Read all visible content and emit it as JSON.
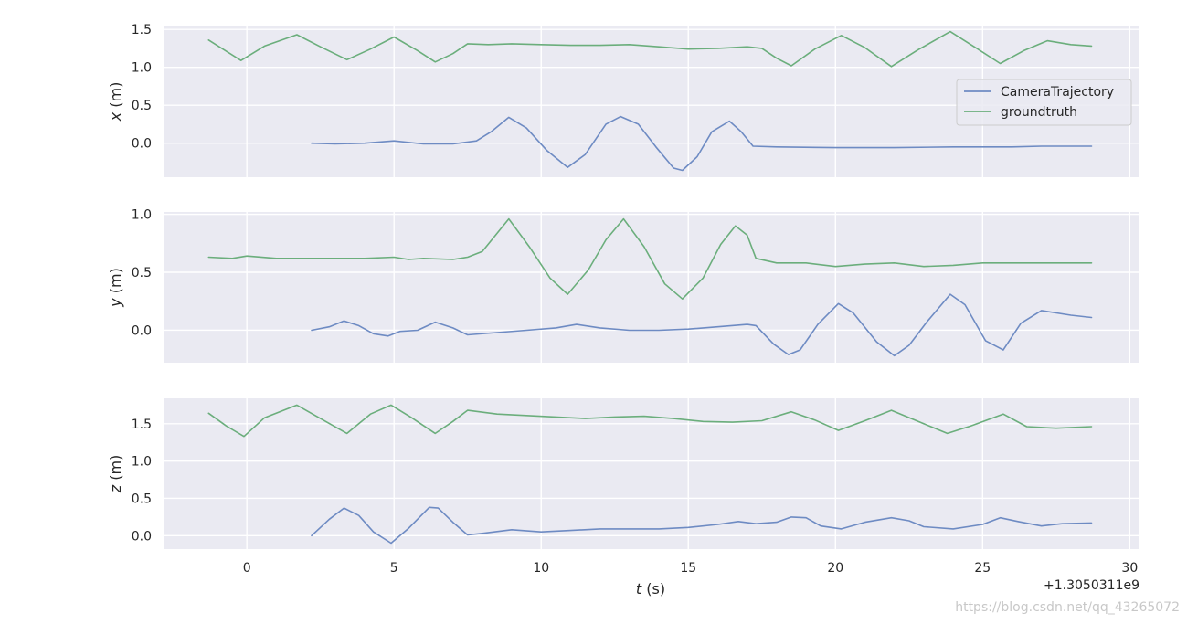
{
  "chart_data": {
    "type": "line",
    "figure": {
      "xlabel_italic": "t",
      "xlabel_unit": " (s)",
      "x_offset_text": "+1.3050311e9",
      "xlim": [
        -2.8,
        30.3
      ],
      "xticks": [
        0,
        5,
        10,
        15,
        20,
        25,
        30
      ],
      "grid": true,
      "legend_loc": "right",
      "watermark": "https://blog.csdn.net/qq_43265072"
    },
    "series_meta": [
      {
        "name": "CameraTrajectory",
        "color": "#6e8bc3"
      },
      {
        "name": "groundtruth",
        "color": "#6bae7c"
      }
    ],
    "subplots": [
      {
        "ylabel_italic": "x",
        "ylabel_unit": " (m)",
        "ylim": [
          -0.45,
          1.55
        ],
        "yticks": [
          0.0,
          0.5,
          1.0,
          1.5
        ],
        "ytick_labels": [
          "0.0",
          "0.5",
          "1.0",
          "1.5"
        ],
        "legend": true,
        "series": [
          {
            "name": "CameraTrajectory",
            "x": [
              2.2,
              3.0,
              4.0,
              5.0,
              6.0,
              7.0,
              7.8,
              8.3,
              8.9,
              9.5,
              10.2,
              10.9,
              11.5,
              12.2,
              12.7,
              13.3,
              13.9,
              14.5,
              14.8,
              15.3,
              15.8,
              16.4,
              16.8,
              17.2,
              18.0,
              20.0,
              22.0,
              24.0,
              26.0,
              27.0,
              28.7
            ],
            "y": [
              0.0,
              -0.01,
              0.0,
              0.03,
              -0.01,
              -0.01,
              0.03,
              0.15,
              0.34,
              0.2,
              -0.1,
              -0.32,
              -0.15,
              0.25,
              0.35,
              0.25,
              -0.05,
              -0.33,
              -0.36,
              -0.18,
              0.15,
              0.29,
              0.15,
              -0.04,
              -0.05,
              -0.06,
              -0.06,
              -0.05,
              -0.05,
              -0.04,
              -0.04
            ]
          },
          {
            "name": "groundtruth",
            "x": [
              -1.3,
              -0.2,
              0.6,
              1.7,
              2.5,
              3.4,
              4.2,
              5.0,
              5.8,
              6.4,
              7.0,
              7.5,
              8.2,
              9.0,
              10.0,
              11.0,
              12.0,
              13.0,
              14.0,
              15.0,
              16.0,
              17.0,
              17.5,
              18.0,
              18.5,
              19.3,
              20.2,
              21.0,
              21.9,
              22.8,
              23.9,
              24.8,
              25.6,
              26.4,
              27.2,
              28.0,
              28.7
            ],
            "y": [
              1.36,
              1.09,
              1.28,
              1.43,
              1.27,
              1.1,
              1.24,
              1.4,
              1.22,
              1.07,
              1.18,
              1.31,
              1.3,
              1.31,
              1.3,
              1.29,
              1.29,
              1.3,
              1.27,
              1.24,
              1.25,
              1.27,
              1.25,
              1.12,
              1.02,
              1.24,
              1.42,
              1.26,
              1.01,
              1.23,
              1.47,
              1.25,
              1.05,
              1.22,
              1.35,
              1.3,
              1.28
            ]
          }
        ]
      },
      {
        "ylabel_italic": "y",
        "ylabel_unit": " (m)",
        "ylim": [
          -0.28,
          1.02
        ],
        "yticks": [
          0.0,
          0.5,
          1.0
        ],
        "ytick_labels": [
          "0.0",
          "0.5",
          "1.0"
        ],
        "legend": false,
        "series": [
          {
            "name": "CameraTrajectory",
            "x": [
              2.2,
              2.8,
              3.3,
              3.8,
              4.3,
              4.8,
              5.2,
              5.8,
              6.4,
              7.0,
              7.5,
              8.5,
              9.5,
              10.5,
              11.2,
              12.0,
              13.0,
              14.0,
              15.0,
              16.0,
              17.0,
              17.3,
              17.9,
              18.4,
              18.8,
              19.4,
              20.1,
              20.6,
              21.4,
              22.0,
              22.5,
              23.1,
              23.9,
              24.4,
              25.1,
              25.7,
              26.3,
              27.0,
              28.0,
              28.7
            ],
            "y": [
              0.0,
              0.03,
              0.08,
              0.04,
              -0.03,
              -0.05,
              -0.01,
              0.0,
              0.07,
              0.02,
              -0.04,
              -0.02,
              0.0,
              0.02,
              0.05,
              0.02,
              0.0,
              0.0,
              0.01,
              0.03,
              0.05,
              0.04,
              -0.12,
              -0.21,
              -0.17,
              0.05,
              0.23,
              0.15,
              -0.1,
              -0.22,
              -0.13,
              0.07,
              0.31,
              0.22,
              -0.09,
              -0.17,
              0.06,
              0.17,
              0.13,
              0.11
            ]
          },
          {
            "name": "groundtruth",
            "x": [
              -1.3,
              -0.5,
              0.0,
              1.0,
              2.0,
              3.0,
              4.0,
              5.0,
              5.5,
              6.0,
              7.0,
              7.5,
              8.0,
              8.9,
              9.6,
              10.3,
              10.9,
              11.6,
              12.2,
              12.8,
              13.5,
              14.2,
              14.8,
              15.5,
              16.1,
              16.6,
              17.0,
              17.3,
              18.0,
              19.0,
              20.0,
              21.0,
              22.0,
              23.0,
              24.0,
              25.0,
              26.0,
              27.0,
              28.7
            ],
            "y": [
              0.63,
              0.62,
              0.64,
              0.62,
              0.62,
              0.62,
              0.62,
              0.63,
              0.61,
              0.62,
              0.61,
              0.63,
              0.68,
              0.96,
              0.72,
              0.45,
              0.31,
              0.52,
              0.78,
              0.96,
              0.72,
              0.4,
              0.27,
              0.45,
              0.74,
              0.9,
              0.82,
              0.62,
              0.58,
              0.58,
              0.55,
              0.57,
              0.58,
              0.55,
              0.56,
              0.58,
              0.58,
              0.58,
              0.58
            ]
          }
        ]
      },
      {
        "ylabel_italic": "z",
        "ylabel_unit": " (m)",
        "ylim": [
          -0.18,
          1.84
        ],
        "yticks": [
          0.0,
          0.5,
          1.0,
          1.5
        ],
        "ytick_labels": [
          "0.0",
          "0.5",
          "1.0",
          "1.5"
        ],
        "legend": false,
        "series": [
          {
            "name": "CameraTrajectory",
            "x": [
              2.2,
              2.8,
              3.3,
              3.8,
              4.3,
              4.9,
              5.5,
              6.2,
              6.5,
              7.0,
              7.5,
              8.0,
              9.0,
              10.0,
              11.0,
              12.0,
              13.0,
              14.0,
              15.0,
              16.0,
              16.7,
              17.3,
              18.0,
              18.5,
              19.0,
              19.5,
              20.2,
              21.0,
              21.9,
              22.5,
              23.0,
              24.0,
              25.0,
              25.6,
              26.2,
              27.0,
              27.7,
              28.7
            ],
            "y": [
              0.0,
              0.22,
              0.37,
              0.27,
              0.05,
              -0.1,
              0.1,
              0.38,
              0.37,
              0.18,
              0.01,
              0.03,
              0.08,
              0.05,
              0.07,
              0.09,
              0.09,
              0.09,
              0.11,
              0.15,
              0.19,
              0.16,
              0.18,
              0.25,
              0.24,
              0.13,
              0.09,
              0.18,
              0.24,
              0.2,
              0.12,
              0.09,
              0.15,
              0.24,
              0.19,
              0.13,
              0.16,
              0.17
            ]
          },
          {
            "name": "groundtruth",
            "x": [
              -1.3,
              -0.7,
              -0.1,
              0.6,
              1.7,
              2.5,
              3.4,
              4.2,
              4.9,
              5.6,
              6.4,
              7.0,
              7.5,
              8.5,
              9.5,
              10.5,
              11.5,
              12.5,
              13.5,
              14.5,
              15.5,
              16.5,
              17.5,
              18.5,
              19.3,
              20.1,
              21.0,
              21.9,
              23.0,
              23.8,
              24.6,
              25.7,
              26.5,
              27.5,
              28.7
            ],
            "y": [
              1.64,
              1.47,
              1.33,
              1.58,
              1.75,
              1.57,
              1.37,
              1.63,
              1.75,
              1.58,
              1.37,
              1.53,
              1.68,
              1.63,
              1.61,
              1.59,
              1.57,
              1.59,
              1.6,
              1.57,
              1.53,
              1.52,
              1.54,
              1.66,
              1.55,
              1.41,
              1.54,
              1.68,
              1.5,
              1.37,
              1.47,
              1.63,
              1.46,
              1.44,
              1.46
            ]
          }
        ]
      }
    ]
  }
}
